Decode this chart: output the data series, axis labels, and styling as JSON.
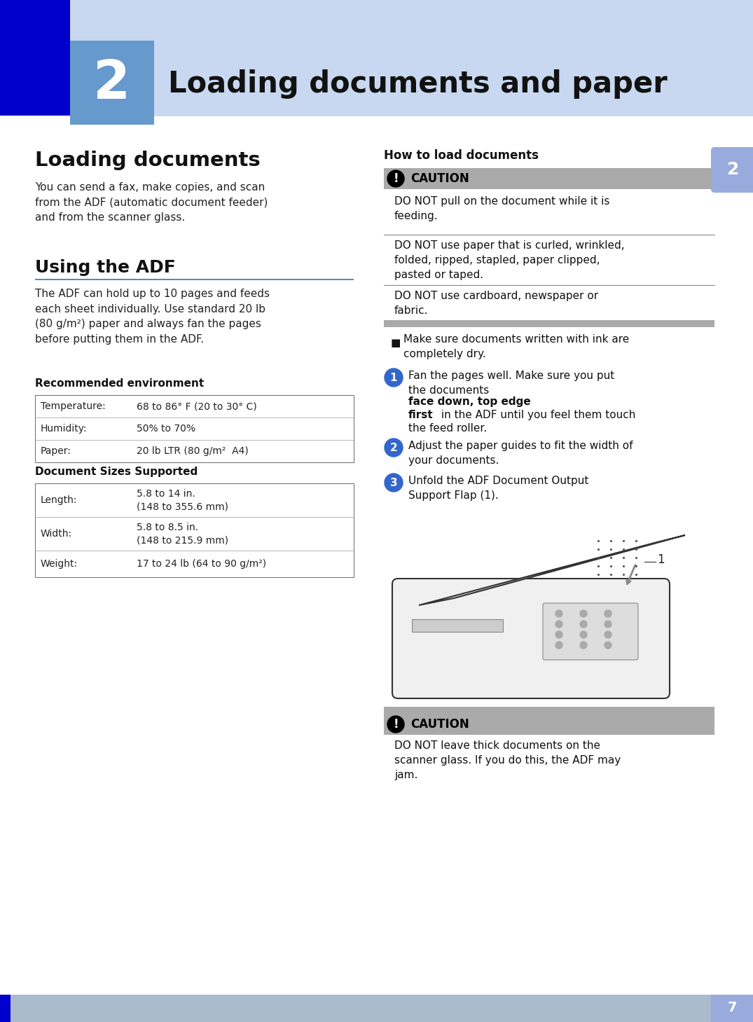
{
  "page_bg": "#ffffff",
  "header_light_blue": "#c8d8f0",
  "header_dark_blue": "#0000cc",
  "chapter_box_color": "#6699cc",
  "chapter_num": "2",
  "chapter_title": "Loading documents and paper",
  "section1_title": "Loading documents",
  "section1_body": "You can send a fax, make copies, and scan\nfrom the ADF (automatic document feeder)\nand from the scanner glass.",
  "section2_title": "Using the ADF",
  "section2_body": "The ADF can hold up to 10 pages and feeds\neach sheet individually. Use standard 20 lb\n(80 g/m²) paper and always fan the pages\nbefore putting them in the ADF.",
  "subsec1_title": "Recommended environment",
  "env_table": [
    [
      "Temperature:",
      "68 to 86° F (20 to 30° C)"
    ],
    [
      "Humidity:",
      "50% to 70%"
    ],
    [
      "Paper:",
      "20 lb LTR (80 g/m²  A4)"
    ]
  ],
  "subsec2_title": "Document Sizes Supported",
  "sizes_table": [
    [
      "Length:",
      "5.8 to 14 in.\n(148 to 355.6 mm)"
    ],
    [
      "Width:",
      "5.8 to 8.5 in.\n(148 to 215.9 mm)"
    ],
    [
      "Weight:",
      "17 to 24 lb (64 to 90 g/m²)"
    ]
  ],
  "right_title": "How to load documents",
  "caution_bg": "#aaaaaa",
  "caution_label": "CAUTION",
  "caution1": "DO NOT pull on the document while it is\nfeeding.",
  "caution2": "DO NOT use paper that is curled, wrinkled,\nfolded, ripped, stapled, paper clipped,\npasted or taped.",
  "caution3": "DO NOT use cardboard, newspaper or\nfabric.",
  "bullet": "Make sure documents written with ink are\ncompletely dry.",
  "step1a": "Fan the pages well. Make sure you put\nthe documents ",
  "step1b": "face down, top edge\nfirst",
  "step1c": " in the ADF until you feel them touch\nthe feed roller.",
  "step2": "Adjust the paper guides to fit the width of\nyour documents.",
  "step3": "Unfold the ADF Document Output\nSupport Flap (1).",
  "caution_bottom": "DO NOT leave thick documents on the\nscanner glass. If you do this, the ADF may\njam.",
  "page_num": "7",
  "tab_color": "#99aadd",
  "step_color": "#3366cc",
  "adf_line_color": "#5588cc",
  "sep_line_color": "#888888",
  "gray_bar_color": "#aaaaaa",
  "footer_bar_color": "#aabbcc"
}
